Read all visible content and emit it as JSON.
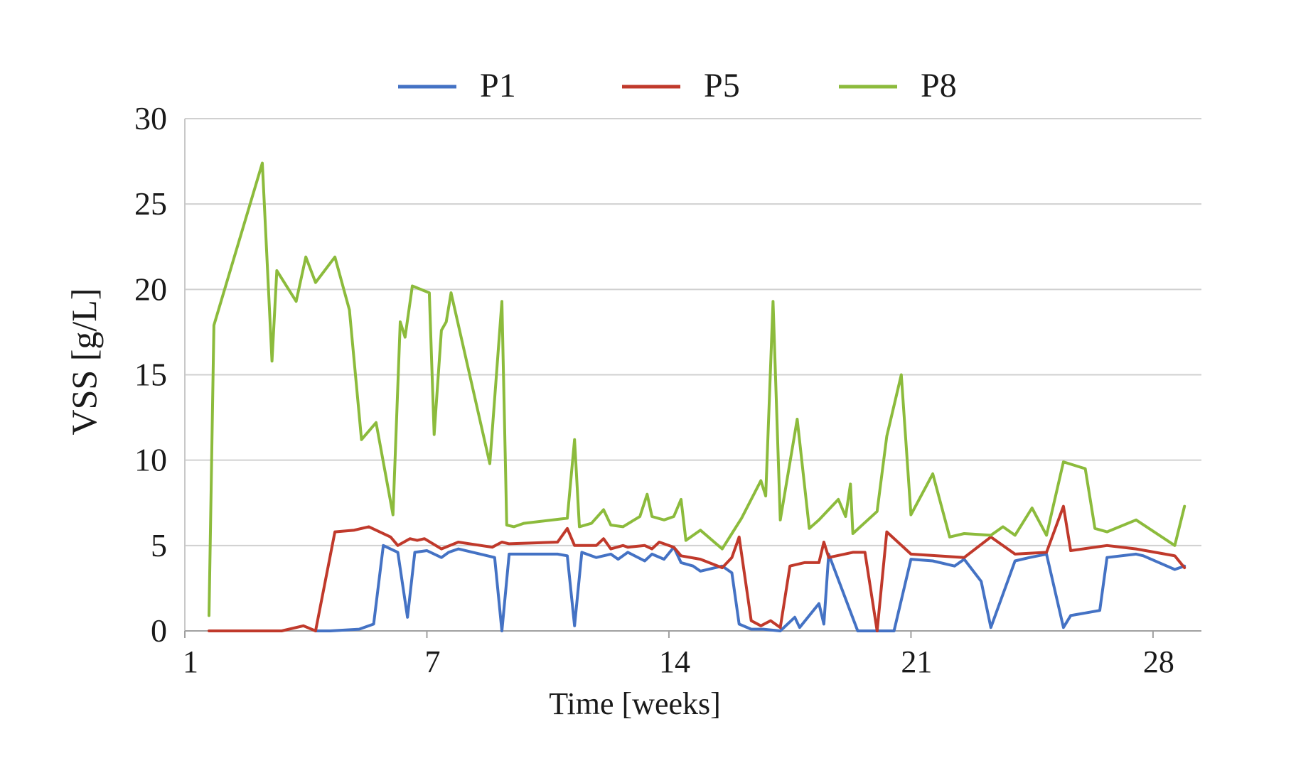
{
  "chart_data": {
    "type": "line",
    "title": "",
    "xlabel": "Time [weeks]",
    "ylabel": "VSS [g/L]",
    "xlim": [
      0,
      42
    ],
    "ylim": [
      0,
      30
    ],
    "x_ticks": [
      {
        "value": 0,
        "label": "1"
      },
      {
        "value": 10,
        "label": "7"
      },
      {
        "value": 20,
        "label": "14"
      },
      {
        "value": 30,
        "label": "21"
      },
      {
        "value": 40,
        "label": "28"
      }
    ],
    "y_ticks": [
      0,
      5,
      10,
      15,
      20,
      25,
      30
    ],
    "grid": "horizontal",
    "legend_position": "top",
    "series": [
      {
        "name": "P1",
        "color": "#4472c4",
        "points": [
          [
            5.4,
            0.0
          ],
          [
            6.0,
            0.0
          ],
          [
            7.2,
            0.1
          ],
          [
            7.8,
            0.4
          ],
          [
            8.2,
            5.0
          ],
          [
            8.8,
            4.6
          ],
          [
            9.2,
            0.8
          ],
          [
            9.5,
            4.6
          ],
          [
            10.0,
            4.7
          ],
          [
            10.6,
            4.3
          ],
          [
            10.9,
            4.6
          ],
          [
            11.3,
            4.8
          ],
          [
            12.8,
            4.3
          ],
          [
            13.1,
            0.0
          ],
          [
            13.4,
            4.5
          ],
          [
            15.4,
            4.5
          ],
          [
            15.8,
            4.4
          ],
          [
            16.1,
            0.3
          ],
          [
            16.4,
            4.6
          ],
          [
            17.0,
            4.3
          ],
          [
            17.6,
            4.5
          ],
          [
            17.9,
            4.2
          ],
          [
            18.3,
            4.6
          ],
          [
            19.0,
            4.1
          ],
          [
            19.3,
            4.5
          ],
          [
            19.8,
            4.2
          ],
          [
            20.2,
            4.9
          ],
          [
            20.5,
            4.0
          ],
          [
            21.0,
            3.8
          ],
          [
            21.3,
            3.5
          ],
          [
            22.2,
            3.8
          ],
          [
            22.6,
            3.4
          ],
          [
            22.9,
            0.4
          ],
          [
            23.4,
            0.1
          ],
          [
            23.9,
            0.1
          ],
          [
            24.6,
            0.0
          ],
          [
            25.2,
            0.8
          ],
          [
            25.4,
            0.2
          ],
          [
            26.2,
            1.6
          ],
          [
            26.4,
            0.4
          ],
          [
            26.6,
            4.5
          ],
          [
            27.8,
            0.0
          ],
          [
            28.4,
            0.0
          ],
          [
            29.3,
            0.0
          ],
          [
            30.0,
            4.2
          ],
          [
            30.9,
            4.1
          ],
          [
            31.8,
            3.8
          ],
          [
            32.2,
            4.2
          ],
          [
            32.9,
            2.9
          ],
          [
            33.3,
            0.2
          ],
          [
            34.3,
            4.1
          ],
          [
            34.9,
            4.3
          ],
          [
            35.6,
            4.5
          ],
          [
            36.3,
            0.2
          ],
          [
            36.6,
            0.9
          ],
          [
            37.8,
            1.2
          ],
          [
            38.1,
            4.3
          ],
          [
            39.3,
            4.5
          ],
          [
            39.6,
            4.4
          ],
          [
            40.9,
            3.6
          ],
          [
            41.3,
            3.8
          ]
        ]
      },
      {
        "name": "P5",
        "color": "#c0392b",
        "points": [
          [
            1.0,
            0.0
          ],
          [
            3.0,
            0.0
          ],
          [
            4.0,
            0.0
          ],
          [
            4.9,
            0.3
          ],
          [
            5.4,
            0.0
          ],
          [
            6.2,
            5.8
          ],
          [
            7.0,
            5.9
          ],
          [
            7.6,
            6.1
          ],
          [
            8.5,
            5.5
          ],
          [
            8.8,
            5.0
          ],
          [
            9.3,
            5.4
          ],
          [
            9.6,
            5.3
          ],
          [
            9.9,
            5.4
          ],
          [
            10.6,
            4.8
          ],
          [
            11.3,
            5.2
          ],
          [
            12.7,
            4.9
          ],
          [
            13.1,
            5.2
          ],
          [
            13.4,
            5.1
          ],
          [
            15.4,
            5.2
          ],
          [
            15.8,
            6.0
          ],
          [
            16.1,
            5.0
          ],
          [
            17.0,
            5.0
          ],
          [
            17.3,
            5.4
          ],
          [
            17.6,
            4.8
          ],
          [
            18.1,
            5.0
          ],
          [
            18.3,
            4.9
          ],
          [
            19.0,
            5.0
          ],
          [
            19.3,
            4.8
          ],
          [
            19.6,
            5.2
          ],
          [
            20.2,
            4.9
          ],
          [
            20.5,
            4.4
          ],
          [
            21.3,
            4.2
          ],
          [
            22.2,
            3.7
          ],
          [
            22.6,
            4.3
          ],
          [
            22.9,
            5.5
          ],
          [
            23.4,
            0.6
          ],
          [
            23.8,
            0.3
          ],
          [
            24.2,
            0.6
          ],
          [
            24.6,
            0.2
          ],
          [
            25.0,
            3.8
          ],
          [
            25.6,
            4.0
          ],
          [
            26.2,
            4.0
          ],
          [
            26.4,
            5.2
          ],
          [
            26.6,
            4.3
          ],
          [
            27.6,
            4.6
          ],
          [
            28.1,
            4.6
          ],
          [
            28.6,
            0.0
          ],
          [
            29.0,
            5.8
          ],
          [
            30.0,
            4.5
          ],
          [
            32.2,
            4.3
          ],
          [
            33.3,
            5.5
          ],
          [
            34.3,
            4.5
          ],
          [
            35.6,
            4.6
          ],
          [
            36.3,
            7.3
          ],
          [
            36.6,
            4.7
          ],
          [
            38.1,
            5.0
          ],
          [
            39.3,
            4.8
          ],
          [
            40.9,
            4.4
          ],
          [
            41.3,
            3.7
          ]
        ]
      },
      {
        "name": "P8",
        "color": "#8cbb3c",
        "points": [
          [
            1.0,
            0.9
          ],
          [
            1.2,
            17.9
          ],
          [
            3.2,
            27.4
          ],
          [
            3.6,
            15.8
          ],
          [
            3.8,
            21.1
          ],
          [
            4.6,
            19.3
          ],
          [
            5.0,
            21.9
          ],
          [
            5.4,
            20.4
          ],
          [
            6.2,
            21.9
          ],
          [
            6.8,
            18.8
          ],
          [
            7.3,
            11.2
          ],
          [
            7.9,
            12.2
          ],
          [
            8.6,
            6.8
          ],
          [
            8.9,
            18.1
          ],
          [
            9.1,
            17.2
          ],
          [
            9.4,
            20.2
          ],
          [
            10.1,
            19.8
          ],
          [
            10.3,
            11.5
          ],
          [
            10.6,
            17.6
          ],
          [
            10.8,
            18.1
          ],
          [
            11.0,
            19.8
          ],
          [
            12.6,
            9.8
          ],
          [
            13.1,
            19.3
          ],
          [
            13.3,
            6.2
          ],
          [
            13.6,
            6.1
          ],
          [
            14.0,
            6.3
          ],
          [
            15.8,
            6.6
          ],
          [
            16.1,
            11.2
          ],
          [
            16.3,
            6.1
          ],
          [
            16.8,
            6.3
          ],
          [
            17.3,
            7.1
          ],
          [
            17.6,
            6.2
          ],
          [
            18.1,
            6.1
          ],
          [
            18.8,
            6.7
          ],
          [
            19.1,
            8.0
          ],
          [
            19.3,
            6.7
          ],
          [
            19.8,
            6.5
          ],
          [
            20.2,
            6.7
          ],
          [
            20.5,
            7.7
          ],
          [
            20.7,
            5.3
          ],
          [
            21.3,
            5.9
          ],
          [
            22.2,
            4.8
          ],
          [
            22.6,
            5.7
          ],
          [
            23.0,
            6.6
          ],
          [
            23.8,
            8.8
          ],
          [
            24.0,
            7.9
          ],
          [
            24.3,
            19.3
          ],
          [
            24.6,
            6.5
          ],
          [
            25.3,
            12.4
          ],
          [
            25.8,
            6.0
          ],
          [
            26.2,
            6.5
          ],
          [
            27.0,
            7.7
          ],
          [
            27.3,
            6.7
          ],
          [
            27.5,
            8.6
          ],
          [
            27.6,
            5.7
          ],
          [
            28.6,
            7.0
          ],
          [
            29.0,
            11.4
          ],
          [
            29.6,
            15.0
          ],
          [
            30.0,
            6.8
          ],
          [
            30.9,
            9.2
          ],
          [
            31.6,
            5.5
          ],
          [
            32.2,
            5.7
          ],
          [
            33.3,
            5.6
          ],
          [
            33.8,
            6.1
          ],
          [
            34.3,
            5.6
          ],
          [
            35.0,
            7.2
          ],
          [
            35.6,
            5.6
          ],
          [
            36.3,
            9.9
          ],
          [
            37.2,
            9.5
          ],
          [
            37.6,
            6.0
          ],
          [
            38.1,
            5.8
          ],
          [
            39.3,
            6.5
          ],
          [
            40.9,
            5.0
          ],
          [
            41.3,
            7.3
          ]
        ]
      }
    ]
  }
}
